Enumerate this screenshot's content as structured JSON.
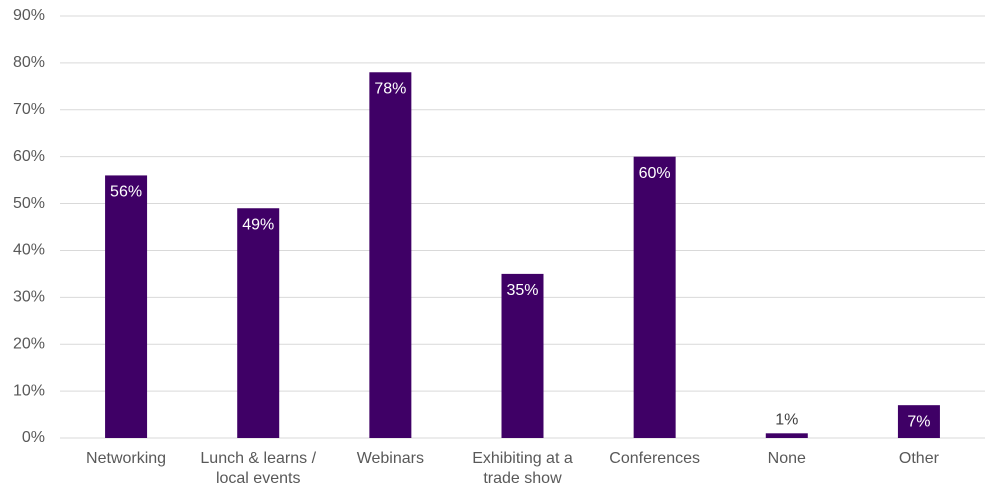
{
  "chart_data": {
    "type": "bar",
    "categories": [
      "Networking",
      "Lunch & learns / local events",
      "Webinars",
      "Exhibiting at a trade show",
      "Conferences",
      "None",
      "Other"
    ],
    "values": [
      56,
      49,
      78,
      35,
      60,
      1,
      7
    ],
    "value_labels": [
      "56%",
      "49%",
      "78%",
      "35%",
      "60%",
      "1%",
      "7%"
    ],
    "color": "#3f0066",
    "ylim": [
      0,
      90
    ],
    "yticks": [
      {
        "value": 0,
        "label": "0%"
      },
      {
        "value": 10,
        "label": "10%"
      },
      {
        "value": 20,
        "label": "20%"
      },
      {
        "value": 30,
        "label": "30%"
      },
      {
        "value": 40,
        "label": "40%"
      },
      {
        "value": 50,
        "label": "50%"
      },
      {
        "value": 60,
        "label": "60%"
      },
      {
        "value": 70,
        "label": "70%"
      },
      {
        "value": 80,
        "label": "80%"
      },
      {
        "value": 90,
        "label": "90%"
      }
    ],
    "grid": true
  }
}
